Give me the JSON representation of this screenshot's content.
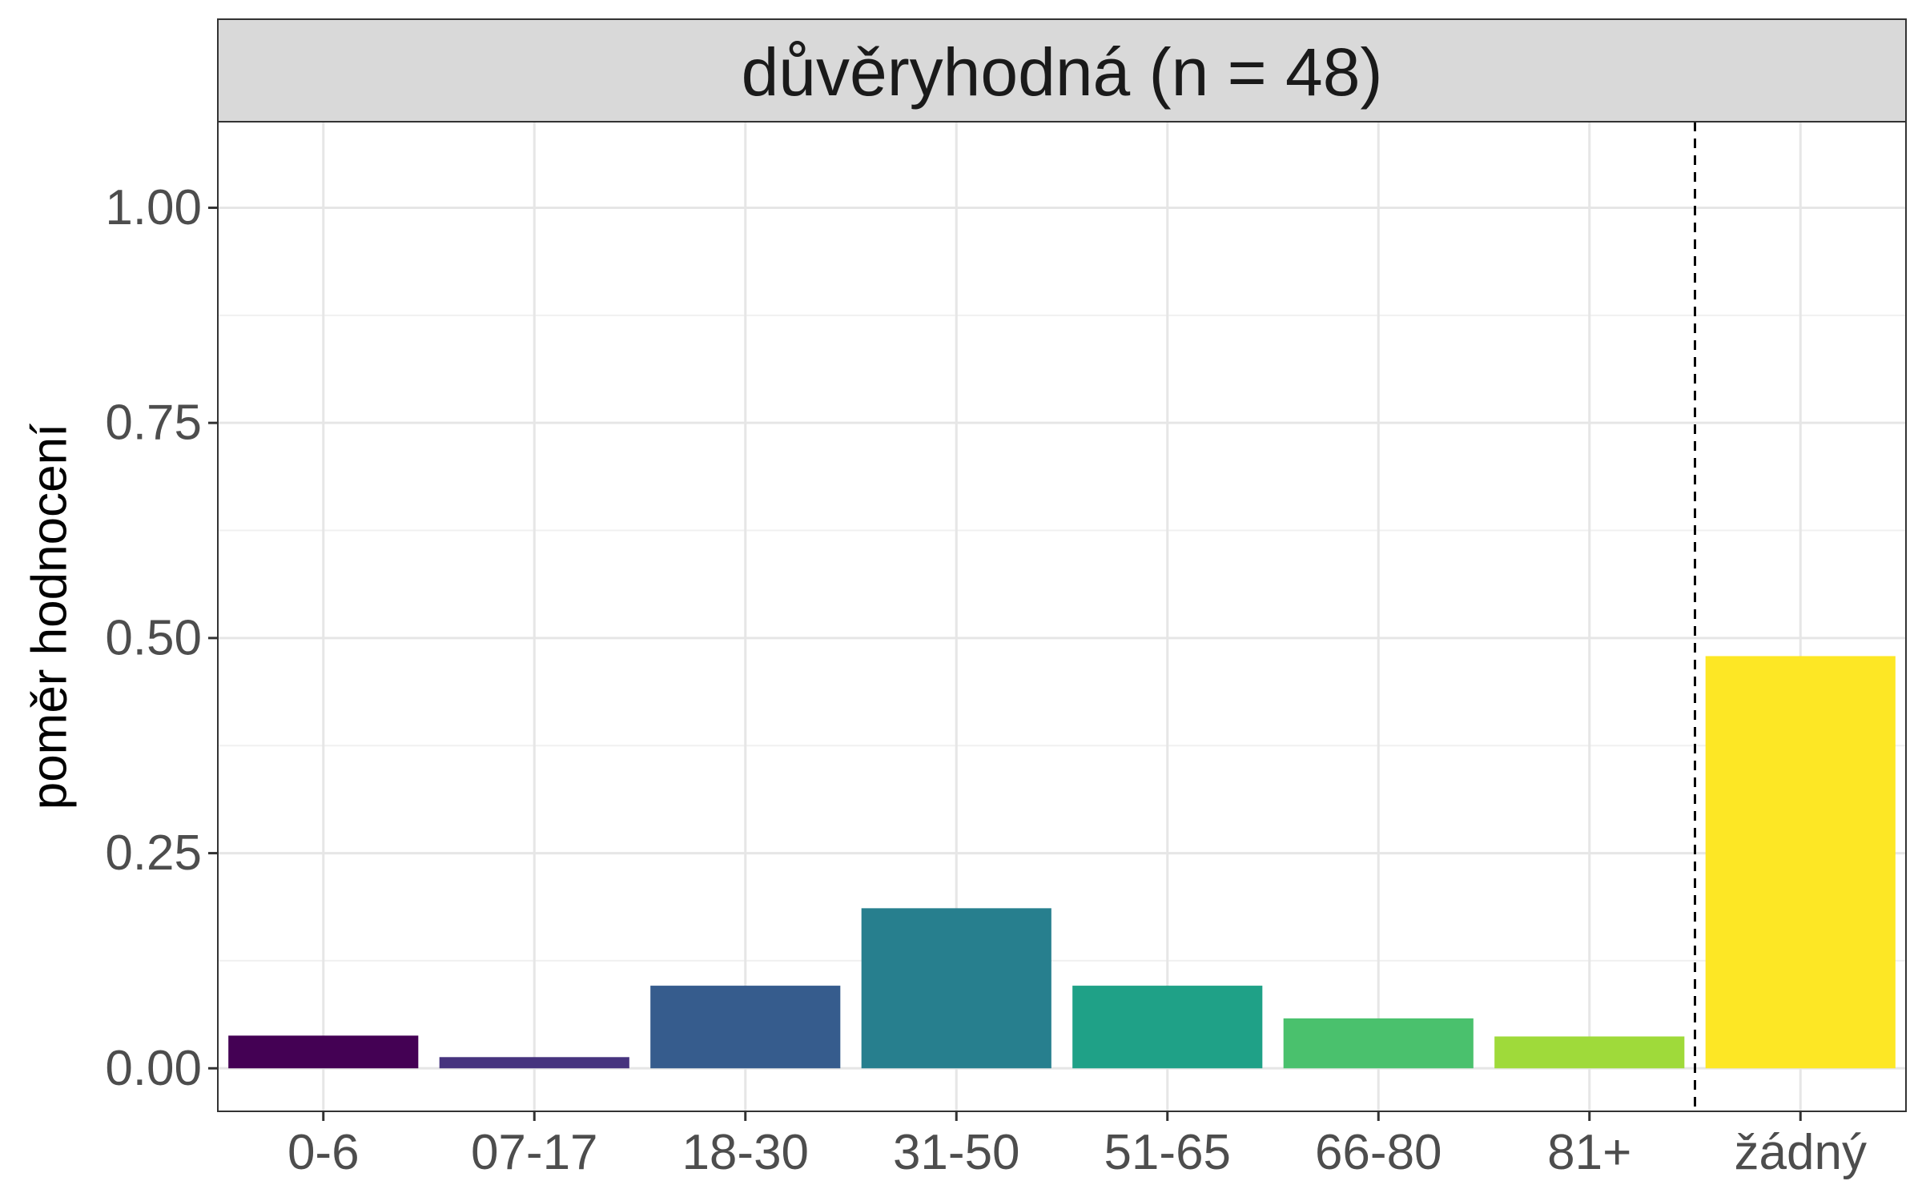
{
  "chart_data": {
    "type": "bar",
    "facet_label": "důvěryhodná (n = 48)",
    "xlabel": "",
    "ylabel": "poměr hodnocení",
    "categories": [
      "0-6",
      "07-17",
      "18-30",
      "31-50",
      "51-65",
      "66-80",
      "81+",
      "žádný"
    ],
    "values": [
      0.038,
      0.013,
      0.096,
      0.186,
      0.096,
      0.058,
      0.037,
      0.479
    ],
    "colors": [
      "#440154",
      "#46337E",
      "#365C8D",
      "#277F8E",
      "#1FA187",
      "#4AC16D",
      "#9FDA3A",
      "#FDE725"
    ],
    "ylim": [
      -0.05,
      1.1
    ],
    "yticks": [
      0.0,
      0.25,
      0.5,
      0.75,
      1.0
    ],
    "ytick_labels": [
      "0.00",
      "0.25",
      "0.50",
      "0.75",
      "1.00"
    ],
    "separator_after_category": "81+",
    "separator_style": "dashed",
    "grid": true,
    "legend": "none"
  }
}
